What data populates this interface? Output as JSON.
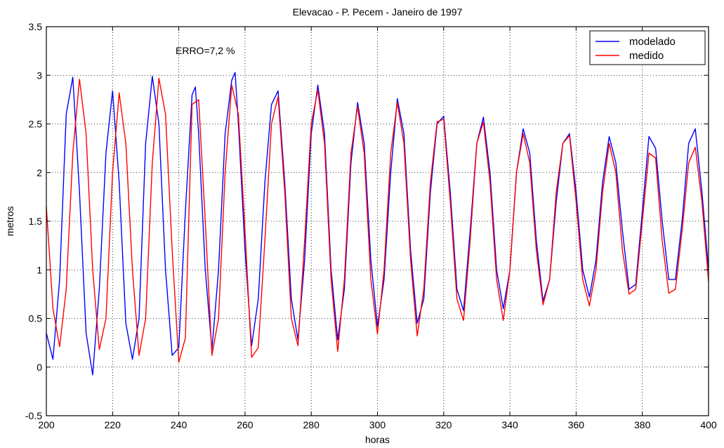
{
  "chart_data": {
    "type": "line",
    "title": "Elevacao - P. Pecem - Janeiro de 1997",
    "xlabel": "horas",
    "ylabel": "metros",
    "xlim": [
      200,
      400
    ],
    "ylim": [
      -0.5,
      3.5
    ],
    "x_ticks": [
      "200",
      "220",
      "240",
      "260",
      "280",
      "300",
      "320",
      "340",
      "360",
      "380",
      "400"
    ],
    "y_ticks": [
      "-0.5",
      "0",
      "0.5",
      "1",
      "1.5",
      "2",
      "2.5",
      "3",
      "3.5"
    ],
    "grid": true,
    "legend": {
      "position": "top-right",
      "entries": [
        "modelado",
        "medido"
      ]
    },
    "annotation": "ERRO=7,2 %",
    "colors": {
      "modelado": "#0000ff",
      "medido": "#ff0000"
    },
    "series": [
      {
        "name": "modelado",
        "points": [
          [
            200,
            0.35
          ],
          [
            202,
            0.08
          ],
          [
            204,
            0.9
          ],
          [
            206,
            2.6
          ],
          [
            208,
            2.98
          ],
          [
            210,
            1.8
          ],
          [
            212,
            0.35
          ],
          [
            214,
            -0.08
          ],
          [
            216,
            0.8
          ],
          [
            218,
            2.2
          ],
          [
            220,
            2.84
          ],
          [
            222,
            1.9
          ],
          [
            224,
            0.45
          ],
          [
            226,
            0.08
          ],
          [
            228,
            0.5
          ],
          [
            230,
            2.3
          ],
          [
            232,
            2.99
          ],
          [
            234,
            2.5
          ],
          [
            236,
            1.0
          ],
          [
            238,
            0.12
          ],
          [
            240,
            0.2
          ],
          [
            242,
            1.6
          ],
          [
            244,
            2.8
          ],
          [
            245,
            2.88
          ],
          [
            246,
            2.4
          ],
          [
            248,
            1.0
          ],
          [
            250,
            0.18
          ],
          [
            252,
            1.0
          ],
          [
            254,
            2.4
          ],
          [
            256,
            2.95
          ],
          [
            257,
            3.03
          ],
          [
            258,
            2.5
          ],
          [
            260,
            1.2
          ],
          [
            262,
            0.22
          ],
          [
            264,
            0.7
          ],
          [
            266,
            1.9
          ],
          [
            268,
            2.7
          ],
          [
            270,
            2.84
          ],
          [
            272,
            1.9
          ],
          [
            274,
            0.7
          ],
          [
            276,
            0.28
          ],
          [
            278,
            1.1
          ],
          [
            280,
            2.4
          ],
          [
            282,
            2.9
          ],
          [
            284,
            2.4
          ],
          [
            286,
            1.0
          ],
          [
            288,
            0.28
          ],
          [
            290,
            0.8
          ],
          [
            292,
            2.1
          ],
          [
            294,
            2.72
          ],
          [
            296,
            2.3
          ],
          [
            298,
            1.1
          ],
          [
            300,
            0.42
          ],
          [
            302,
            0.9
          ],
          [
            304,
            2.0
          ],
          [
            306,
            2.76
          ],
          [
            308,
            2.4
          ],
          [
            310,
            1.2
          ],
          [
            312,
            0.45
          ],
          [
            314,
            0.7
          ],
          [
            316,
            1.8
          ],
          [
            318,
            2.5
          ],
          [
            320,
            2.58
          ],
          [
            322,
            1.8
          ],
          [
            324,
            0.8
          ],
          [
            326,
            0.58
          ],
          [
            328,
            1.4
          ],
          [
            330,
            2.3
          ],
          [
            332,
            2.57
          ],
          [
            334,
            2.0
          ],
          [
            336,
            1.0
          ],
          [
            338,
            0.6
          ],
          [
            340,
            1.0
          ],
          [
            342,
            2.0
          ],
          [
            344,
            2.45
          ],
          [
            346,
            2.2
          ],
          [
            348,
            1.3
          ],
          [
            350,
            0.68
          ],
          [
            352,
            0.9
          ],
          [
            354,
            1.7
          ],
          [
            356,
            2.3
          ],
          [
            358,
            2.4
          ],
          [
            360,
            1.8
          ],
          [
            362,
            1.0
          ],
          [
            364,
            0.72
          ],
          [
            366,
            1.1
          ],
          [
            368,
            1.9
          ],
          [
            370,
            2.37
          ],
          [
            372,
            2.1
          ],
          [
            374,
            1.4
          ],
          [
            376,
            0.8
          ],
          [
            378,
            0.85
          ],
          [
            380,
            1.6
          ],
          [
            382,
            2.37
          ],
          [
            384,
            2.25
          ],
          [
            386,
            1.5
          ],
          [
            388,
            0.9
          ],
          [
            390,
            0.9
          ],
          [
            392,
            1.5
          ],
          [
            394,
            2.3
          ],
          [
            396,
            2.45
          ],
          [
            398,
            1.8
          ],
          [
            400,
            1.0
          ]
        ]
      },
      {
        "name": "medido",
        "points": [
          [
            200,
            1.65
          ],
          [
            202,
            0.6
          ],
          [
            204,
            0.21
          ],
          [
            206,
            0.8
          ],
          [
            208,
            2.2
          ],
          [
            210,
            2.96
          ],
          [
            212,
            2.4
          ],
          [
            214,
            1.0
          ],
          [
            216,
            0.18
          ],
          [
            218,
            0.5
          ],
          [
            220,
            2.0
          ],
          [
            222,
            2.82
          ],
          [
            224,
            2.3
          ],
          [
            226,
            1.0
          ],
          [
            228,
            0.12
          ],
          [
            230,
            0.5
          ],
          [
            232,
            2.1
          ],
          [
            234,
            2.97
          ],
          [
            236,
            2.6
          ],
          [
            238,
            1.2
          ],
          [
            240,
            0.05
          ],
          [
            242,
            0.3
          ],
          [
            244,
            2.7
          ],
          [
            246,
            2.75
          ],
          [
            248,
            1.5
          ],
          [
            250,
            0.12
          ],
          [
            252,
            0.5
          ],
          [
            254,
            2.0
          ],
          [
            256,
            2.9
          ],
          [
            258,
            2.6
          ],
          [
            260,
            1.4
          ],
          [
            262,
            0.1
          ],
          [
            264,
            0.2
          ],
          [
            266,
            1.3
          ],
          [
            268,
            2.5
          ],
          [
            270,
            2.78
          ],
          [
            272,
            1.8
          ],
          [
            274,
            0.5
          ],
          [
            276,
            0.22
          ],
          [
            278,
            1.3
          ],
          [
            280,
            2.5
          ],
          [
            282,
            2.85
          ],
          [
            284,
            2.3
          ],
          [
            286,
            0.9
          ],
          [
            288,
            0.16
          ],
          [
            290,
            0.9
          ],
          [
            292,
            2.2
          ],
          [
            294,
            2.68
          ],
          [
            296,
            2.2
          ],
          [
            298,
            0.9
          ],
          [
            300,
            0.34
          ],
          [
            302,
            1.0
          ],
          [
            304,
            2.2
          ],
          [
            306,
            2.72
          ],
          [
            308,
            2.3
          ],
          [
            310,
            1.1
          ],
          [
            312,
            0.32
          ],
          [
            314,
            0.8
          ],
          [
            316,
            1.9
          ],
          [
            318,
            2.52
          ],
          [
            320,
            2.55
          ],
          [
            322,
            1.7
          ],
          [
            324,
            0.7
          ],
          [
            326,
            0.48
          ],
          [
            328,
            1.3
          ],
          [
            330,
            2.3
          ],
          [
            332,
            2.52
          ],
          [
            334,
            1.9
          ],
          [
            336,
            0.9
          ],
          [
            338,
            0.48
          ],
          [
            340,
            1.0
          ],
          [
            342,
            2.0
          ],
          [
            344,
            2.4
          ],
          [
            346,
            2.1
          ],
          [
            348,
            1.2
          ],
          [
            350,
            0.64
          ],
          [
            352,
            0.9
          ],
          [
            354,
            1.8
          ],
          [
            356,
            2.3
          ],
          [
            358,
            2.38
          ],
          [
            360,
            1.7
          ],
          [
            362,
            0.9
          ],
          [
            364,
            0.63
          ],
          [
            366,
            1.0
          ],
          [
            368,
            1.8
          ],
          [
            370,
            2.3
          ],
          [
            372,
            2.0
          ],
          [
            374,
            1.2
          ],
          [
            376,
            0.75
          ],
          [
            378,
            0.8
          ],
          [
            380,
            1.5
          ],
          [
            382,
            2.2
          ],
          [
            384,
            2.15
          ],
          [
            386,
            1.3
          ],
          [
            388,
            0.76
          ],
          [
            390,
            0.8
          ],
          [
            392,
            1.4
          ],
          [
            394,
            2.1
          ],
          [
            396,
            2.26
          ],
          [
            398,
            1.7
          ],
          [
            400,
            0.88
          ]
        ]
      }
    ]
  }
}
